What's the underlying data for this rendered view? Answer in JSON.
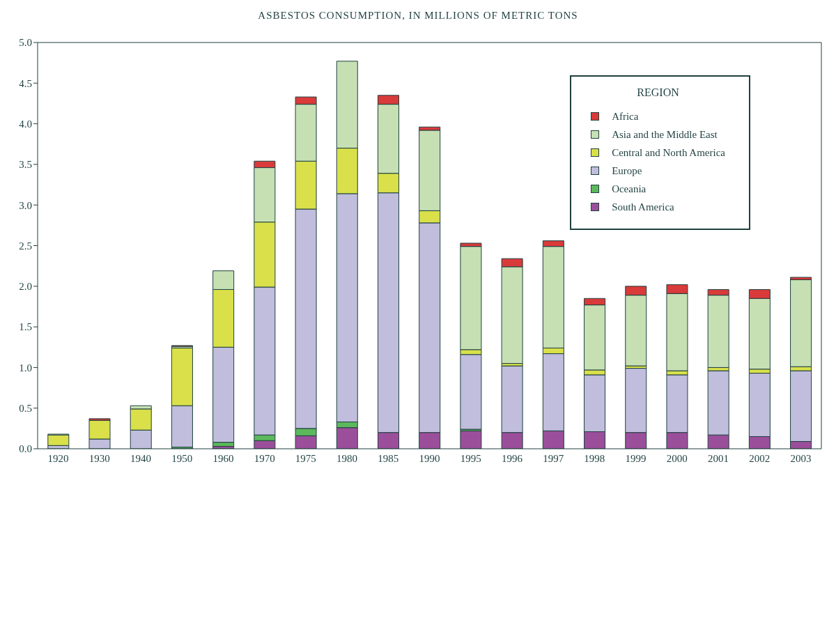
{
  "chart_data": {
    "type": "bar",
    "title": "ASBESTOS CONSUMPTION, IN MILLIONS OF METRIC TONS",
    "legend_title": "REGION",
    "stacked": true,
    "legend": "top right",
    "grid": false,
    "categories": [
      "1920",
      "1930",
      "1940",
      "1950",
      "1960",
      "1970",
      "1975",
      "1980",
      "1985",
      "1990",
      "1995",
      "1996",
      "1997",
      "1998",
      "1999",
      "2000",
      "2001",
      "2002",
      "2003"
    ],
    "ylim": [
      0,
      5
    ],
    "yticks": [
      {
        "value": 0,
        "label": "0.0"
      },
      0.5,
      {
        "value": 1,
        "label": "1.0"
      },
      1.5,
      {
        "value": 2,
        "label": "2.0"
      },
      2.5,
      {
        "value": 3,
        "label": "3.0"
      },
      3.5,
      {
        "value": 4,
        "label": "4.0"
      },
      4.5,
      {
        "value": 5,
        "label": "5.0"
      }
    ],
    "series": [
      {
        "name": "South America",
        "color": "#9b4f9b",
        "values": [
          0,
          0,
          null,
          null,
          0.03,
          0.1,
          0.16,
          0.26,
          0.2,
          0.2,
          0.22,
          0.2,
          0.22,
          0.21,
          0.2,
          0.2,
          0.17,
          0.15,
          0.09
        ]
      },
      {
        "name": "Oceania",
        "color": "#5cb85c",
        "values": [
          0,
          0,
          0,
          0.02,
          0.05,
          0.07,
          0.09,
          0.07,
          0,
          0,
          0.02,
          0,
          0,
          0,
          0,
          0,
          0,
          0,
          0
        ]
      },
      {
        "name": "Europe",
        "color": "#c0bedc",
        "values": [
          0.04,
          0.12,
          0.23,
          0.51,
          1.17,
          1.82,
          2.7,
          2.81,
          2.95,
          2.58,
          0.92,
          0.82,
          0.95,
          0.7,
          0.79,
          0.71,
          0.79,
          0.78,
          0.87
        ]
      },
      {
        "name": "Central and North America",
        "color": "#d9e04a",
        "values": [
          0.13,
          0.23,
          0.26,
          0.71,
          0.71,
          0.8,
          0.59,
          0.56,
          0.24,
          0.15,
          0.06,
          0.03,
          0.07,
          0.06,
          0.03,
          0.05,
          0.04,
          0.05,
          0.05
        ]
      },
      {
        "name": "Asia and the Middle East",
        "color": "#c6e0b4",
        "values": [
          0.01,
          null,
          0.04,
          0.02,
          0.23,
          0.67,
          0.7,
          1.07,
          0.85,
          0.99,
          1.27,
          1.19,
          1.25,
          0.8,
          0.87,
          0.95,
          0.89,
          0.87,
          1.07
        ]
      },
      {
        "name": "Africa",
        "color": "#d93a3a",
        "values": [
          0,
          0.02,
          0,
          0.01,
          0,
          0.08,
          0.09,
          0,
          0.11,
          0.04,
          0.04,
          0.1,
          0.07,
          0.08,
          0.11,
          0.11,
          0.07,
          0.11,
          0.03
        ]
      }
    ]
  }
}
